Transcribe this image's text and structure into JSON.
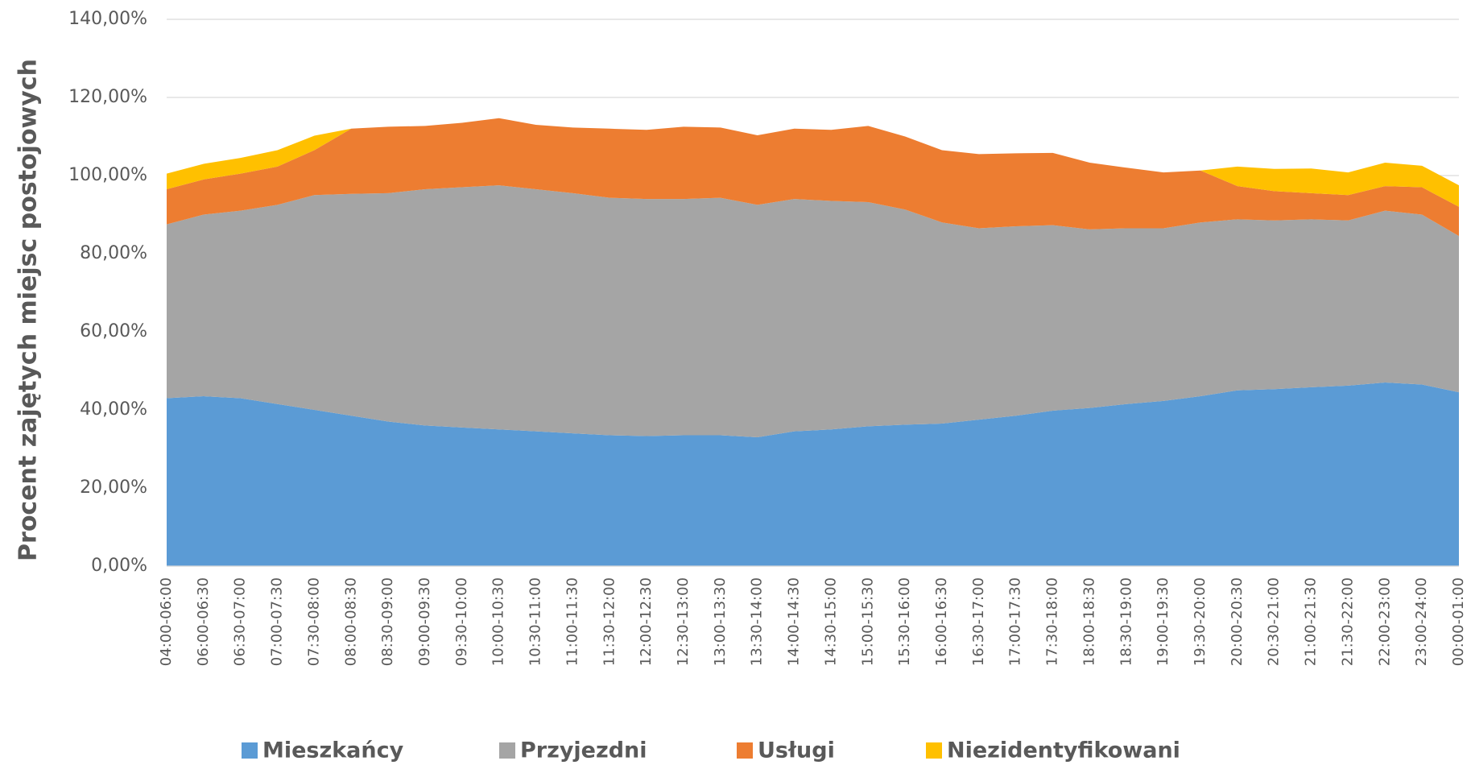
{
  "chart_data": {
    "type": "stacked_area",
    "y_label": "Procent zajętych miejsc postojowych",
    "categories": [
      "04:00-06:00",
      "06:00-06:30",
      "06:30-07:00",
      "07:00-07:30",
      "07:30-08:00",
      "08:00-08:30",
      "08:30-09:00",
      "09:00-09:30",
      "09:30-10:00",
      "10:00-10:30",
      "10:30-11:00",
      "11:00-11:30",
      "11:30-12:00",
      "12:00-12:30",
      "12:30-13:00",
      "13:00-13:30",
      "13:30-14:00",
      "14:00-14:30",
      "14:30-15:00",
      "15:00-15:30",
      "15:30-16:00",
      "16:00-16:30",
      "16:30-17:00",
      "17:00-17:30",
      "17:30-18:00",
      "18:00-18:30",
      "18:30-19:00",
      "19:00-19:30",
      "19:30-20:00",
      "20:00-20:30",
      "20:30-21:00",
      "21:00-21:30",
      "21:30-22:00",
      "22:00-23:00",
      "23:00-24:00",
      "00:00-01:00"
    ],
    "series": [
      {
        "name": "Mieszkańcy",
        "color": "#5b9bd5",
        "values": [
          43,
          43.5,
          43,
          41.5,
          40,
          38.5,
          37,
          36,
          35.5,
          35,
          34.5,
          34,
          33.5,
          33.3,
          33.5,
          33.5,
          33,
          34.5,
          35,
          35.8,
          36.2,
          36.5,
          37.5,
          38.5,
          39.8,
          40.5,
          41.5,
          42.3,
          43.5,
          45,
          45.3,
          45.8,
          46.2,
          47,
          46.5,
          44.5
        ]
      },
      {
        "name": "Przyjezdni",
        "color": "#a5a5a5",
        "values": [
          44.5,
          46.5,
          48,
          51,
          55,
          56.8,
          58.5,
          60.5,
          61.5,
          62.5,
          62,
          61.5,
          60.8,
          60.7,
          60.5,
          60.8,
          59.5,
          59.5,
          58.5,
          57.4,
          55.1,
          51.5,
          49,
          48.5,
          47.5,
          45.7,
          45,
          44.2,
          44.5,
          43.8,
          43.2,
          43,
          42.3,
          44,
          43.5,
          40
        ]
      },
      {
        "name": "Usługi",
        "color": "#ed7d31",
        "values": [
          9,
          9,
          9.5,
          9.8,
          11.5,
          16.7,
          17,
          16.2,
          16.5,
          17.2,
          16.5,
          16.8,
          17.7,
          17.7,
          18.5,
          18,
          17.8,
          18,
          18.2,
          19.5,
          18.7,
          18.5,
          19,
          18.7,
          18.5,
          17.1,
          15.5,
          14.3,
          13.3,
          8.5,
          7.5,
          6.7,
          6.5,
          6.3,
          7,
          7.5
        ]
      },
      {
        "name": "Niezidentyfikowani",
        "color": "#ffc000",
        "values": [
          4,
          4,
          4,
          4.2,
          3.7,
          0,
          0,
          0,
          0,
          0,
          0,
          0,
          0,
          0,
          0,
          0,
          0,
          0,
          0,
          0,
          0,
          0,
          0,
          0,
          0,
          0,
          0,
          0,
          0,
          5,
          5.7,
          6.3,
          5.8,
          6,
          5.5,
          5.5
        ]
      }
    ],
    "ylim": [
      0,
      140
    ],
    "yticks": [
      {
        "value": 0,
        "label": "0,00%"
      },
      {
        "value": 20,
        "label": "20,00%"
      },
      {
        "value": 40,
        "label": "40,00%"
      },
      {
        "value": 60,
        "label": "60,00%"
      },
      {
        "value": 80,
        "label": "80,00%"
      },
      {
        "value": 100,
        "label": "100,00%"
      },
      {
        "value": 120,
        "label": "120,00%"
      },
      {
        "value": 140,
        "label": "140,00%"
      }
    ],
    "grid": true
  }
}
